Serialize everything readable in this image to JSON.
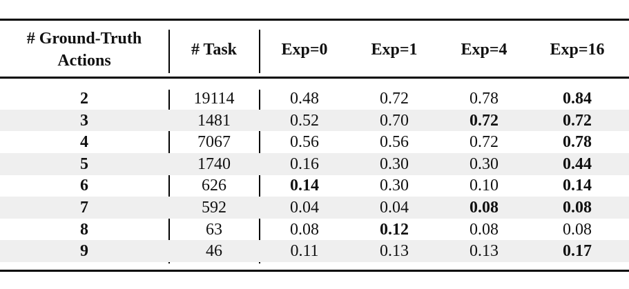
{
  "table": {
    "header": [
      "# Ground-Truth Actions",
      "# Task",
      "Exp=0",
      "Exp=1",
      "Exp=4",
      "Exp=16"
    ],
    "rows": [
      [
        "2",
        "19114",
        "0.48",
        "0.72",
        "0.78",
        "0.84"
      ],
      [
        "3",
        "1481",
        "0.52",
        "0.70",
        "0.72",
        "0.72"
      ],
      [
        "4",
        "7067",
        "0.56",
        "0.56",
        "0.72",
        "0.78"
      ],
      [
        "5",
        "1740",
        "0.16",
        "0.30",
        "0.30",
        "0.44"
      ],
      [
        "6",
        "626",
        "0.14",
        "0.30",
        "0.10",
        "0.14"
      ],
      [
        "7",
        "592",
        "0.04",
        "0.04",
        "0.08",
        "0.08"
      ],
      [
        "8",
        "63",
        "0.08",
        "0.12",
        "0.08",
        "0.08"
      ],
      [
        "9",
        "46",
        "0.11",
        "0.13",
        "0.13",
        "0.17"
      ]
    ],
    "bold": [
      [
        true,
        false,
        false,
        false,
        false,
        true
      ],
      [
        true,
        false,
        false,
        false,
        true,
        true
      ],
      [
        true,
        false,
        false,
        false,
        false,
        true
      ],
      [
        true,
        false,
        false,
        false,
        false,
        true
      ],
      [
        true,
        false,
        true,
        false,
        false,
        true
      ],
      [
        true,
        false,
        false,
        false,
        true,
        true
      ],
      [
        true,
        false,
        false,
        true,
        false,
        false
      ],
      [
        true,
        false,
        false,
        false,
        false,
        true
      ]
    ]
  }
}
